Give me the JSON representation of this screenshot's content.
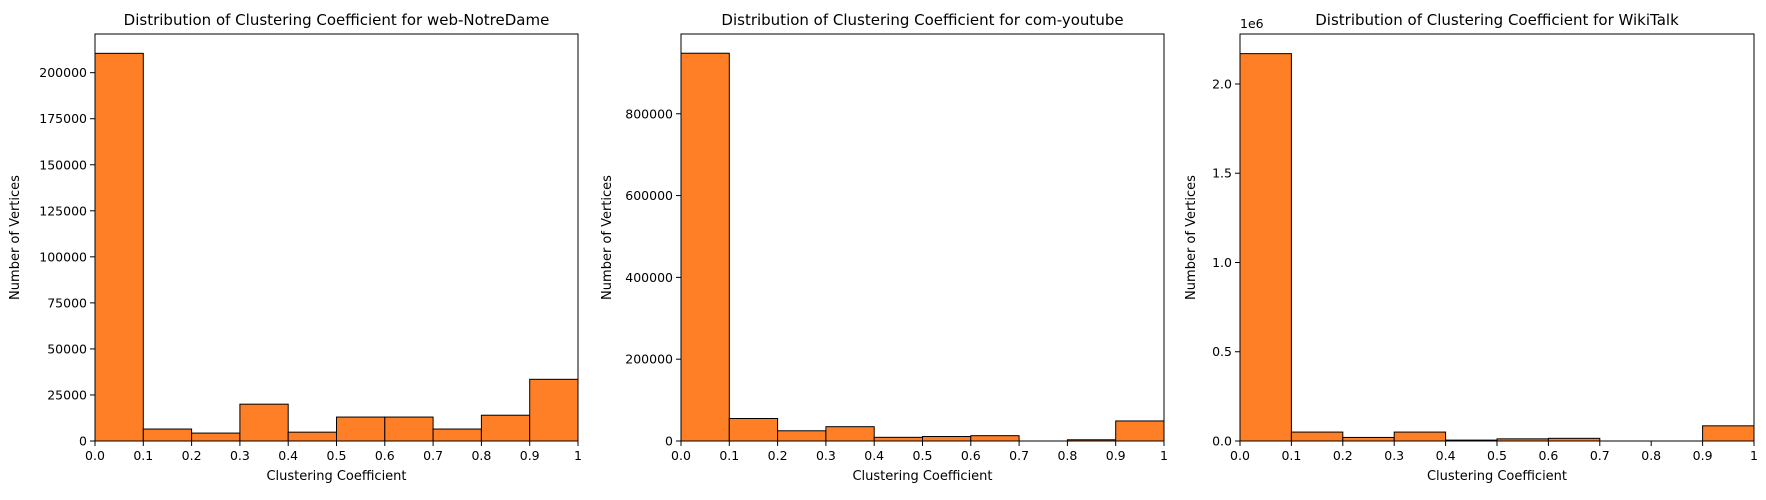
{
  "chart_data": [
    {
      "type": "bar",
      "title": "Distribution of Clustering Coefficient for web-NotreDame",
      "xlabel": "Clustering Coefficient",
      "ylabel": "Number of Vertices",
      "bin_edges": [
        0.0,
        0.1,
        0.2,
        0.3,
        0.4,
        0.5,
        0.6,
        0.7,
        0.8,
        0.9,
        1.0
      ],
      "values": [
        210500,
        6500,
        4300,
        20000,
        4800,
        13000,
        13000,
        6500,
        14000,
        33500
      ],
      "xlim": [
        0,
        1
      ],
      "ylim": [
        0,
        221000
      ],
      "xticks": [
        "0.0",
        "0.1",
        "0.2",
        "0.3",
        "0.4",
        "0.5",
        "0.6",
        "0.7",
        "0.8",
        "0.9",
        "1"
      ],
      "yticks": [
        0,
        25000,
        50000,
        75000,
        100000,
        125000,
        150000,
        175000,
        200000
      ],
      "ytick_labels": [
        "0",
        "25000",
        "50000",
        "75000",
        "100000",
        "125000",
        "150000",
        "175000",
        "200000"
      ],
      "offset_text": "",
      "bar_color": "#ff7f27",
      "edge_color": "#000000",
      "grid": false
    },
    {
      "type": "bar",
      "title": "Distribution of Clustering Coefficient for com-youtube",
      "xlabel": "Clustering Coefficient",
      "ylabel": "Number of Vertices",
      "bin_edges": [
        0.0,
        0.1,
        0.2,
        0.3,
        0.4,
        0.5,
        0.6,
        0.7,
        0.8,
        0.9,
        1.0
      ],
      "values": [
        948000,
        55000,
        25000,
        35000,
        9000,
        11000,
        13000,
        0,
        3000,
        49000
      ],
      "xlim": [
        0,
        1
      ],
      "ylim": [
        0,
        995000
      ],
      "xticks": [
        "0.0",
        "0.1",
        "0.2",
        "0.3",
        "0.4",
        "0.5",
        "0.6",
        "0.7",
        "0.8",
        "0.9",
        "1"
      ],
      "yticks": [
        0,
        200000,
        400000,
        600000,
        800000
      ],
      "ytick_labels": [
        "0",
        "200000",
        "400000",
        "600000",
        "800000"
      ],
      "offset_text": "",
      "bar_color": "#ff7f27",
      "edge_color": "#000000",
      "grid": false
    },
    {
      "type": "bar",
      "title": "Distribution of Clustering Coefficient for WikiTalk",
      "xlabel": "Clustering Coefficient",
      "ylabel": "Number of Vertices",
      "bin_edges": [
        0.0,
        0.1,
        0.2,
        0.3,
        0.4,
        0.5,
        0.6,
        0.7,
        0.8,
        0.9,
        1.0
      ],
      "values": [
        2170000,
        50000,
        20000,
        50000,
        5000,
        12000,
        15000,
        0,
        0,
        85000
      ],
      "xlim": [
        0,
        1
      ],
      "ylim": [
        0,
        2280000
      ],
      "xticks": [
        "0.0",
        "0.1",
        "0.2",
        "0.3",
        "0.4",
        "0.5",
        "0.6",
        "0.7",
        "0.8",
        "0.9",
        "1"
      ],
      "yticks": [
        0,
        500000,
        1000000,
        1500000,
        2000000
      ],
      "ytick_labels": [
        "0.0",
        "0.5",
        "1.0",
        "1.5",
        "2.0"
      ],
      "offset_text": "1e6",
      "bar_color": "#ff7f27",
      "edge_color": "#000000",
      "grid": false
    }
  ]
}
